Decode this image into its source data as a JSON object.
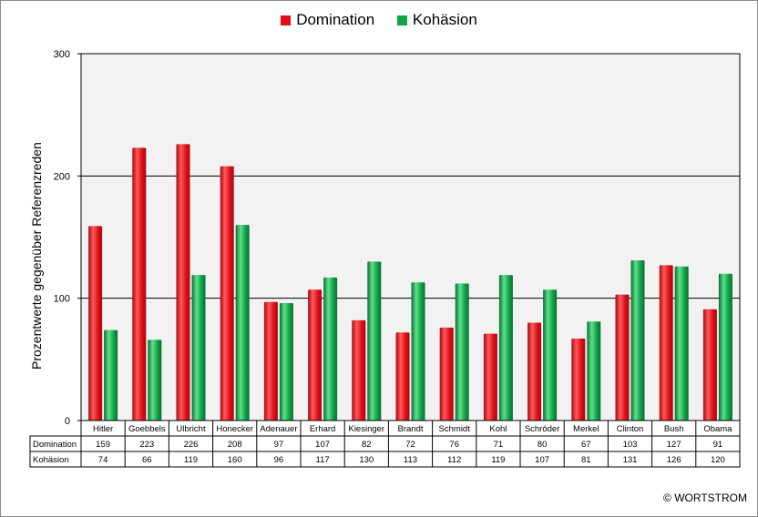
{
  "chart_data": {
    "type": "bar",
    "categories": [
      "Hitler",
      "Goebbels",
      "Ulbricht",
      "Honecker",
      "Adenauer",
      "Erhard",
      "Kiesinger",
      "Brandt",
      "Schmidt",
      "Kohl",
      "Schröder",
      "Merkel",
      "Clinton",
      "Bush",
      "Obama"
    ],
    "series": [
      {
        "name": "Domination",
        "color": "#e0101a",
        "values": [
          159,
          223,
          226,
          208,
          97,
          107,
          82,
          72,
          76,
          71,
          80,
          67,
          103,
          127,
          91
        ]
      },
      {
        "name": "Kohäsion",
        "color": "#12a34a",
        "values": [
          74,
          66,
          119,
          160,
          96,
          117,
          130,
          113,
          112,
          119,
          107,
          81,
          131,
          126,
          120
        ]
      }
    ],
    "title": "",
    "xlabel": "",
    "ylabel": "Prozentwerte  gegenüber Referenzreden",
    "ylim": [
      0,
      300
    ],
    "yticks": [
      0,
      100,
      200,
      300
    ],
    "grid": true,
    "legend": "top-center",
    "table_row_labels": [
      "Domination",
      "Kohäsion"
    ],
    "plot_background": "#f2f2f2"
  },
  "footer": {
    "copyright": "© WORTSTROM"
  }
}
